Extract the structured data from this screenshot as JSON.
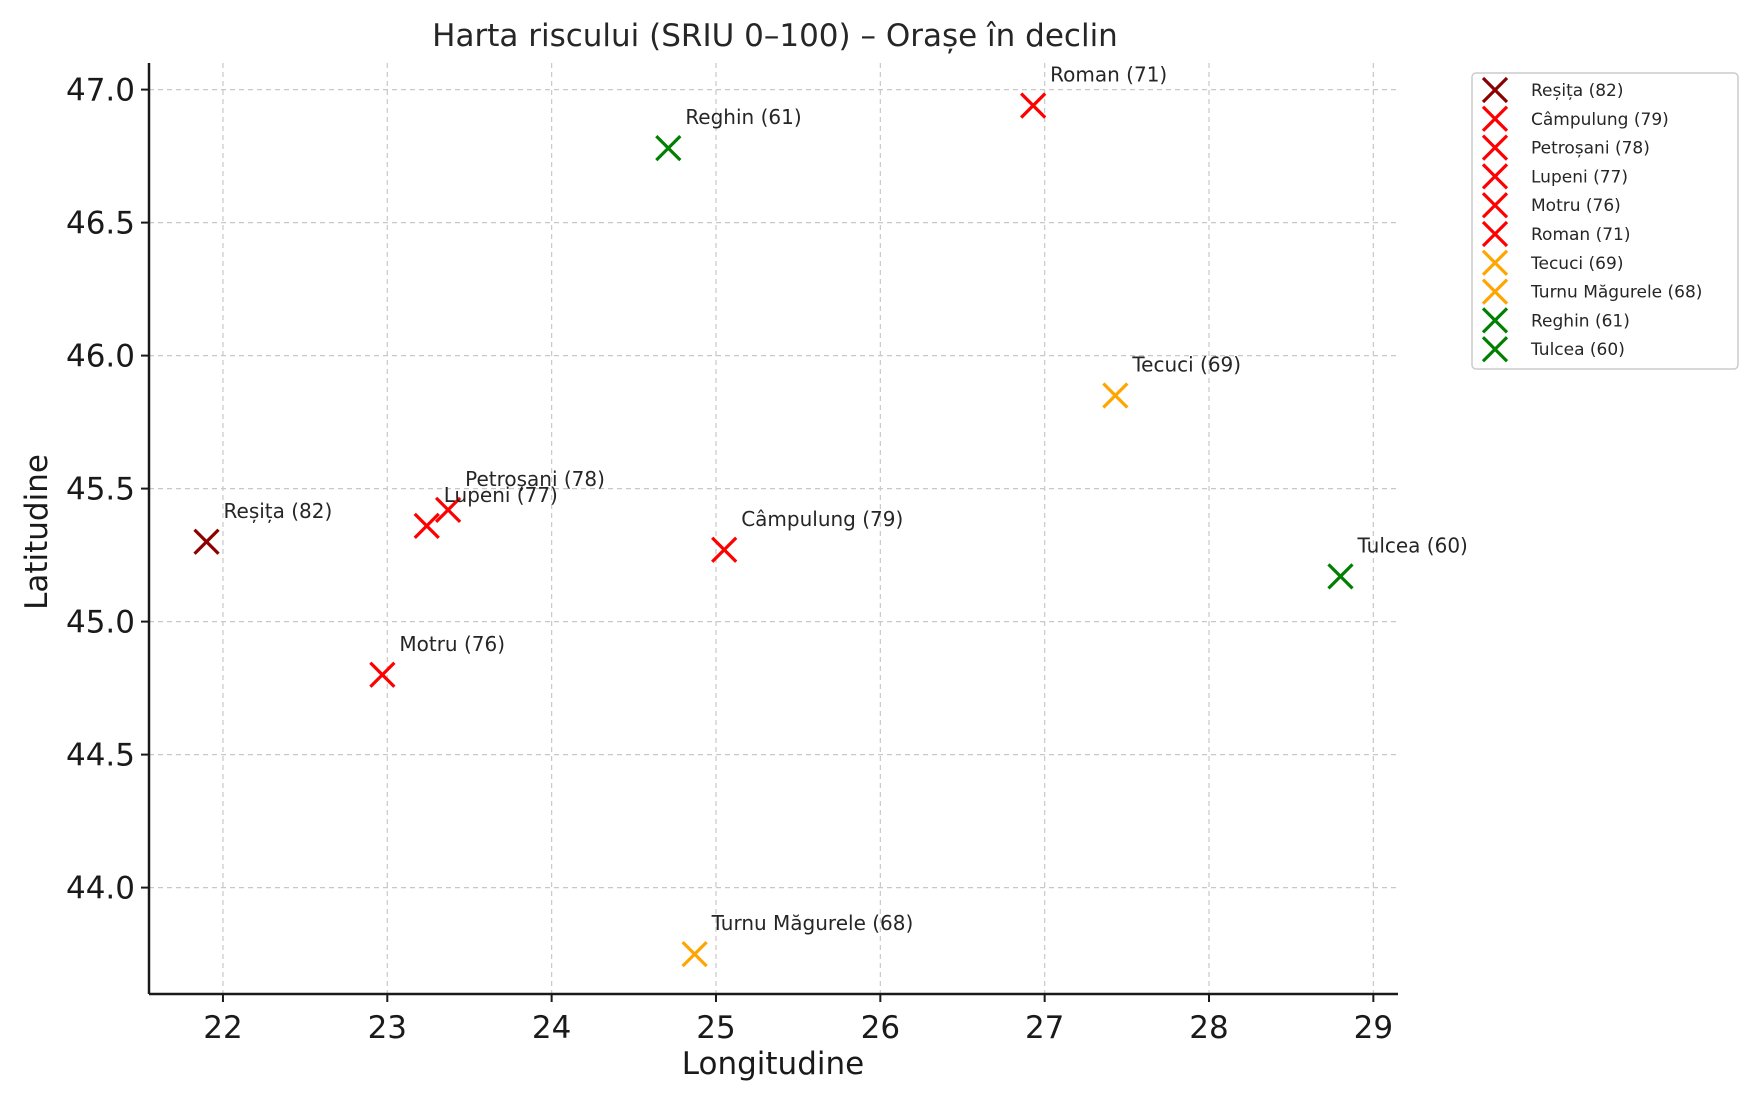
{
  "chart_data": {
    "type": "scatter",
    "title": "Harta riscului (SRIU 0–100) – Orașe în declin",
    "xlabel": "Longitudine",
    "ylabel": "Latitudine",
    "xlim": [
      21.55,
      29.15
    ],
    "ylim": [
      43.6,
      47.1
    ],
    "xticks": [
      22,
      23,
      24,
      25,
      26,
      27,
      28,
      29
    ],
    "yticks": [
      44.0,
      44.5,
      45.0,
      45.5,
      46.0,
      46.5,
      47.0
    ],
    "xtick_labels": [
      "22",
      "23",
      "24",
      "25",
      "26",
      "27",
      "28",
      "29"
    ],
    "ytick_labels": [
      "44.0",
      "44.5",
      "45.0",
      "45.5",
      "46.0",
      "46.5",
      "47.0"
    ],
    "grid": true,
    "marker": "x",
    "legend_position": "outside upper right",
    "points": [
      {
        "label": "Reșița (82)",
        "x": 21.9,
        "y": 45.3,
        "color": "#8b0000"
      },
      {
        "label": "Câmpulung (79)",
        "x": 25.05,
        "y": 45.27,
        "color": "#ff0000"
      },
      {
        "label": "Petroșani (78)",
        "x": 23.37,
        "y": 45.42,
        "color": "#ff0000"
      },
      {
        "label": "Lupeni (77)",
        "x": 23.24,
        "y": 45.36,
        "color": "#ff0000"
      },
      {
        "label": "Motru (76)",
        "x": 22.97,
        "y": 44.8,
        "color": "#ff0000"
      },
      {
        "label": "Roman (71)",
        "x": 26.93,
        "y": 46.94,
        "color": "#ff0000"
      },
      {
        "label": "Tecuci (69)",
        "x": 27.43,
        "y": 45.85,
        "color": "#ffa500"
      },
      {
        "label": "Turnu Măgurele (68)",
        "x": 24.87,
        "y": 43.75,
        "color": "#ffa500"
      },
      {
        "label": "Reghin (61)",
        "x": 24.71,
        "y": 46.78,
        "color": "#008000"
      },
      {
        "label": "Tulcea (60)",
        "x": 28.8,
        "y": 45.17,
        "color": "#008000"
      }
    ]
  }
}
